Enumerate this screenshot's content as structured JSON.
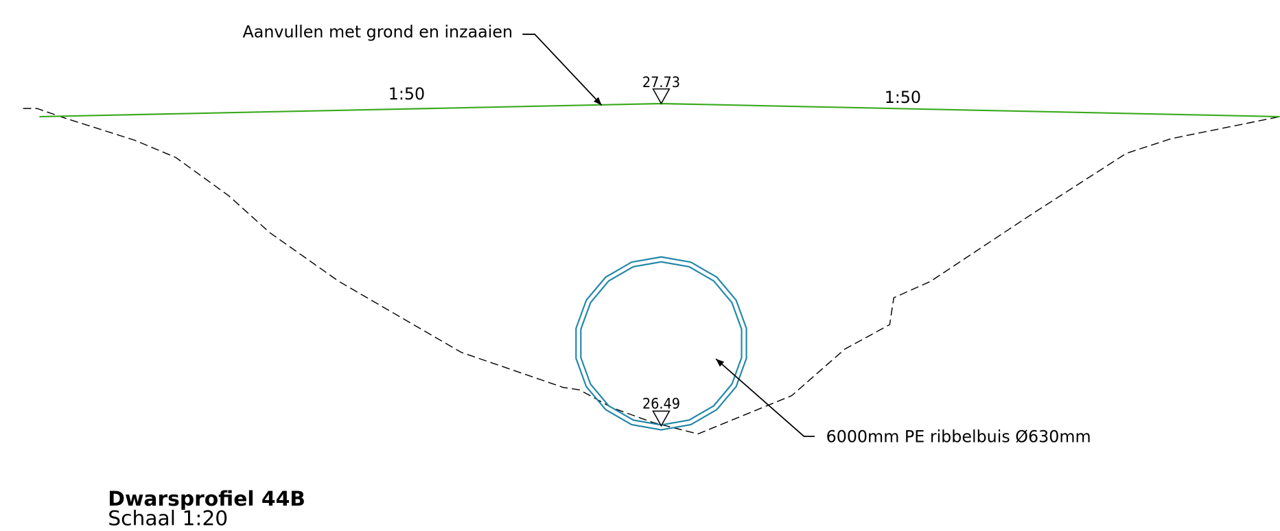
{
  "annotations": {
    "fill_label": "Aanvullen met grond en inzaaien",
    "slope_left": "1:50",
    "slope_right": "1:50",
    "top_level": "27.73",
    "pipe_level": "26.49",
    "pipe_label": "6000mm PE ribbelbuis Ø630mm"
  },
  "title": {
    "name": "Dwarsprofiel 44B",
    "scale": "Schaal 1:20"
  }
}
